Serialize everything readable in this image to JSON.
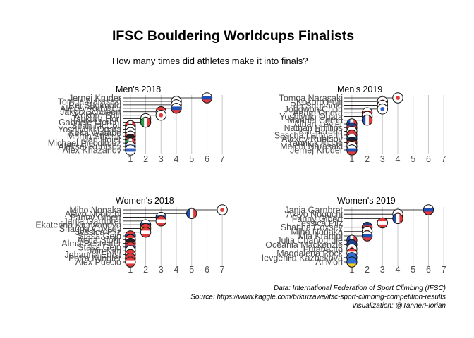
{
  "title": "IFSC Bouldering Worldcups Finalists",
  "subtitle": "How many times did athletes make it into finals?",
  "caption": [
    "Data:  International Federation of Sport Climbing (IFSC)",
    "Source: https://www.kaggle.com/brkurzawa/ifsc-sport-climbing-competition-results",
    "Visualization: @TannerFlorian"
  ],
  "colors": {
    "text": "#000000",
    "axis_text": "#4d4d4d",
    "grid": "#c8c8c8",
    "segment": "#000000"
  },
  "chart_data": [
    {
      "type": "scatter",
      "title": "Men's 2018",
      "xticks": [
        1,
        2,
        3,
        4,
        5,
        6,
        7
      ],
      "xlim": [
        0.5,
        7.5
      ],
      "grid": true,
      "athletes": [
        {
          "name": "Jernej Kruder",
          "value": 6,
          "flag": "slovenia"
        },
        {
          "name": "Tomoa Narasaki",
          "value": 4,
          "flag": "japan"
        },
        {
          "name": "Rei Sugimoto",
          "value": 4,
          "flag": "japan"
        },
        {
          "name": "Alexey Rubtsov",
          "value": 4,
          "flag": "russia"
        },
        {
          "name": "Jakob Schubert",
          "value": 3,
          "flag": "austria"
        },
        {
          "name": "Kokoro Fujii",
          "value": 3,
          "flag": "japan"
        },
        {
          "name": "Tsukuru Hori",
          "value": 2,
          "flag": "japan"
        },
        {
          "name": "Gabriele Moroni",
          "value": 2,
          "flag": "italy"
        },
        {
          "name": "Sean McColl",
          "value": 1,
          "flag": "canada"
        },
        {
          "name": "Yoshiyuki Ogata",
          "value": 1,
          "flag": "japan"
        },
        {
          "name": "Keita Watabe",
          "value": 1,
          "flag": "japan"
        },
        {
          "name": "Martin Stranik",
          "value": 1,
          "flag": "czech"
        },
        {
          "name": "Jan Hojer",
          "value": 1,
          "flag": "germany"
        },
        {
          "name": "Michael Piccolruaz",
          "value": 1,
          "flag": "italy"
        },
        {
          "name": "Aleksei Rubtsov",
          "value": 1,
          "flag": "russia"
        },
        {
          "name": "Alex Khazanov",
          "value": 1,
          "flag": "israel"
        }
      ]
    },
    {
      "type": "scatter",
      "title": "Men's 2019",
      "xticks": [
        1,
        2,
        3,
        4,
        5,
        6,
        7
      ],
      "xlim": [
        0.5,
        7.5
      ],
      "grid": true,
      "athletes": [
        {
          "name": "Tomoa Narasaki",
          "value": 4,
          "flag": "japan"
        },
        {
          "name": "Kokoro Fujii",
          "value": 3,
          "flag": "japan"
        },
        {
          "name": "Rei Sugimoto",
          "value": 3,
          "flag": "japan"
        },
        {
          "name": "Jongwon Chon",
          "value": 3,
          "flag": "korea"
        },
        {
          "name": "Adam Ondra",
          "value": 2,
          "flag": "czech"
        },
        {
          "name": "Yoshiyuki Ogata",
          "value": 2,
          "flag": "japan"
        },
        {
          "name": "Manuel Cornu",
          "value": 2,
          "flag": "france"
        },
        {
          "name": "Alban Levier",
          "value": 1,
          "flag": "france"
        },
        {
          "name": "Nathan Phillips",
          "value": 1,
          "flag": "gb"
        },
        {
          "name": "Kai Harada",
          "value": 1,
          "flag": "japan"
        },
        {
          "name": "Sascha Lehmann",
          "value": 1,
          "flag": "switzerland"
        },
        {
          "name": "Alexey Rubtsov",
          "value": 1,
          "flag": "russia"
        },
        {
          "name": "Yannick Flohe",
          "value": 1,
          "flag": "germany"
        },
        {
          "name": "Meichi Narasaki",
          "value": 1,
          "flag": "japan"
        },
        {
          "name": "Jernej Kruder",
          "value": 1,
          "flag": "slovenia"
        }
      ]
    },
    {
      "type": "scatter",
      "title": "Women's 2018",
      "xticks": [
        1,
        2,
        3,
        4,
        5,
        6,
        7
      ],
      "xlim": [
        0.5,
        7.5
      ],
      "grid": true,
      "athletes": [
        {
          "name": "Miho Nonaka",
          "value": 7,
          "flag": "japan"
        },
        {
          "name": "Akiyo Noguchi",
          "value": 5,
          "flag": "france"
        },
        {
          "name": "Fanny Gibert",
          "value": 3,
          "flag": "slovenia"
        },
        {
          "name": "Janja Garnbret",
          "value": 3,
          "flag": "austria"
        },
        {
          "name": "Ekaterina Kipriyanova",
          "value": 2,
          "flag": "russia"
        },
        {
          "name": "Shauna Coxsey",
          "value": 2,
          "flag": "spain"
        },
        {
          "name": "Jessica Pilz",
          "value": 2,
          "flag": "austria"
        },
        {
          "name": "Staša Gejo",
          "value": 1,
          "flag": "serbia"
        },
        {
          "name": "Anna Stöhr",
          "value": 1,
          "flag": "austria"
        },
        {
          "name": "Alma Bestvater",
          "value": 1,
          "flag": "germany"
        },
        {
          "name": "Stasa Gejo",
          "value": 1,
          "flag": "serbia"
        },
        {
          "name": "Jain Kim",
          "value": 1,
          "flag": "korea"
        },
        {
          "name": "Johanna Ernst",
          "value": 1,
          "flag": "austria"
        },
        {
          "name": "Petra Klingler",
          "value": 1,
          "flag": "switzerland"
        },
        {
          "name": "Alex Puccio",
          "value": 1,
          "flag": "usa"
        }
      ]
    },
    {
      "type": "scatter",
      "title": "Women's 2019",
      "xticks": [
        1,
        2,
        3,
        4,
        5,
        6,
        7
      ],
      "xlim": [
        0.5,
        7.5
      ],
      "grid": true,
      "athletes": [
        {
          "name": "Janja Garnbret",
          "value": 6,
          "flag": "slovenia"
        },
        {
          "name": "Akiyo Noguchi",
          "value": 4,
          "flag": "japan"
        },
        {
          "name": "Fanny Gibert",
          "value": 4,
          "flag": "france"
        },
        {
          "name": "Jessica Pilz",
          "value": 3,
          "flag": "austria"
        },
        {
          "name": "Shauna Coxsey",
          "value": 2,
          "flag": "gb"
        },
        {
          "name": "Miho Nonaka",
          "value": 2,
          "flag": "japan"
        },
        {
          "name": "Mia Krampl",
          "value": 2,
          "flag": "slovenia"
        },
        {
          "name": "Julia Chanourdie",
          "value": 1,
          "flag": "france"
        },
        {
          "name": "Oceania Mackenzie",
          "value": 1,
          "flag": "australia"
        },
        {
          "name": "Futaba Ito",
          "value": 1,
          "flag": "japan"
        },
        {
          "name": "Magdalena Röck",
          "value": 1,
          "flag": "austria"
        },
        {
          "name": "Ievgeniia Kazbekova",
          "value": 1,
          "flag": "ukraine"
        },
        {
          "name": "Ai Mori",
          "value": 1,
          "flag": "ukraine"
        }
      ]
    }
  ]
}
